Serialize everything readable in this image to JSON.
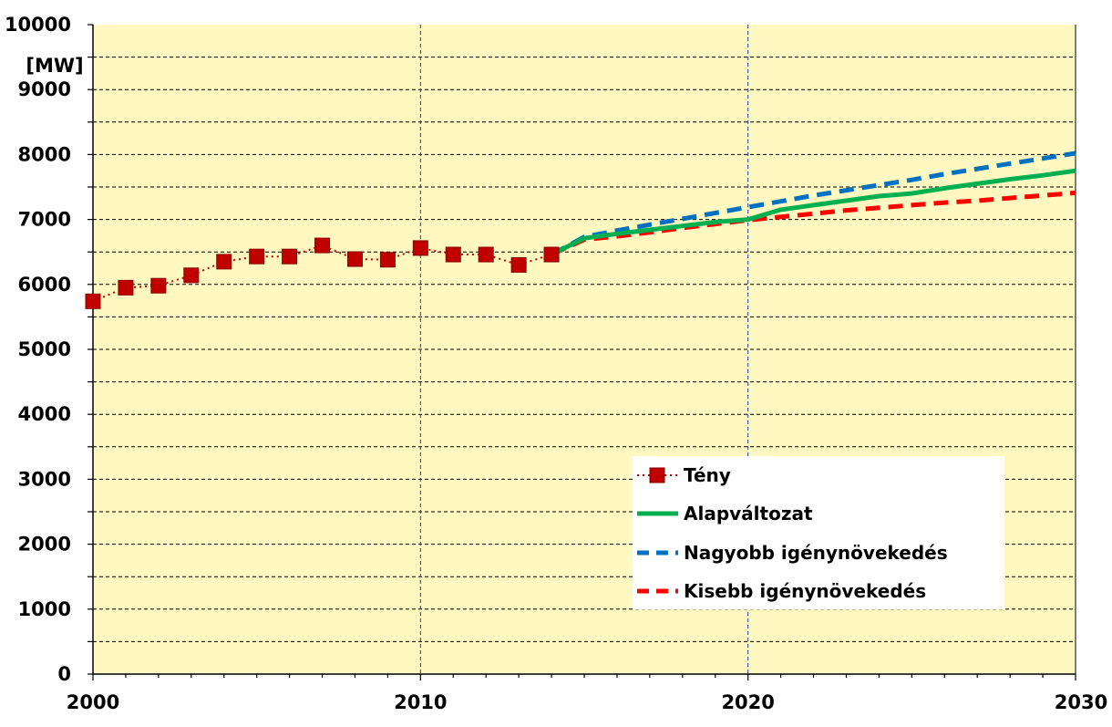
{
  "chart_data": {
    "type": "line",
    "ylabel": "[MW]",
    "xlabel": "",
    "xlim": [
      2000,
      2030
    ],
    "ylim": [
      0,
      10000
    ],
    "x_ticks": [
      2000,
      2010,
      2020,
      2030
    ],
    "y_ticks": [
      0,
      1000,
      2000,
      3000,
      4000,
      5000,
      6000,
      7000,
      8000,
      9000,
      10000
    ],
    "grid": true,
    "legend_position": "bottom-right",
    "plot_background": "#FFF8C0",
    "series": [
      {
        "name": "Tény",
        "color": "#C00000",
        "style": "dotted-with-square-markers",
        "x": [
          2000,
          2001,
          2002,
          2003,
          2004,
          2005,
          2006,
          2007,
          2008,
          2009,
          2010,
          2011,
          2012,
          2013,
          2014
        ],
        "y": [
          5740,
          5950,
          5980,
          6140,
          6350,
          6430,
          6430,
          6600,
          6390,
          6380,
          6560,
          6460,
          6460,
          6300,
          6460
        ]
      },
      {
        "name": "Alapváltozat",
        "color": "#00B050",
        "style": "solid",
        "x": [
          2014,
          2015,
          2016,
          2017,
          2018,
          2019,
          2020,
          2021,
          2022,
          2023,
          2024,
          2025,
          2026,
          2027,
          2028,
          2029,
          2030
        ],
        "y": [
          6460,
          6710,
          6780,
          6840,
          6900,
          6960,
          7000,
          7150,
          7220,
          7290,
          7360,
          7400,
          7480,
          7550,
          7620,
          7680,
          7750
        ]
      },
      {
        "name": "Nagyobb igénynövekedés",
        "color": "#0070C0",
        "style": "dashed",
        "x": [
          2014,
          2015,
          2016,
          2017,
          2018,
          2019,
          2020,
          2021,
          2022,
          2023,
          2024,
          2025,
          2026,
          2027,
          2028,
          2029,
          2030
        ],
        "y": [
          6460,
          6730,
          6830,
          6920,
          7010,
          7100,
          7190,
          7280,
          7370,
          7450,
          7530,
          7610,
          7700,
          7780,
          7860,
          7940,
          8020
        ]
      },
      {
        "name": "Kisebb igénynövekedés",
        "color": "#FF0000",
        "style": "dashed",
        "x": [
          2014,
          2015,
          2016,
          2017,
          2018,
          2019,
          2020,
          2021,
          2022,
          2023,
          2024,
          2025,
          2026,
          2027,
          2028,
          2029,
          2030
        ],
        "y": [
          6460,
          6690,
          6740,
          6800,
          6870,
          6930,
          6990,
          7040,
          7090,
          7140,
          7180,
          7220,
          7260,
          7290,
          7330,
          7370,
          7410
        ]
      }
    ]
  }
}
